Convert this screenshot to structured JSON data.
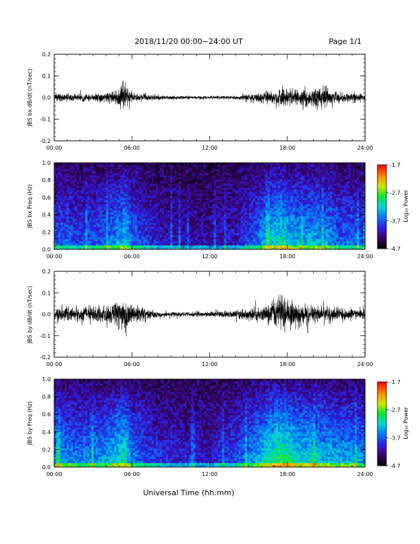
{
  "header": {
    "title": "2018/11/20  00:00−24:00 UT",
    "page": "Page 1/1"
  },
  "xlabel": "Universal Time (hh:mm)",
  "colorbar": {
    "label": "Log₁₀ Power",
    "ticks": [
      "-1.7",
      "-2.7",
      "-3.7",
      "-4.7"
    ]
  },
  "chart_data": [
    {
      "type": "line",
      "id": "bx-waveform",
      "ylabel": "JBS bx dB/dt (nT/sec)",
      "xlim": [
        0,
        24
      ],
      "ylim": [
        -0.2,
        0.2
      ],
      "xticks": [
        "00:00",
        "06:00",
        "12:00",
        "18:00",
        "24:00"
      ],
      "yticks": [
        "0.2",
        "0.1",
        "0.0",
        "-0.1",
        "-0.2"
      ],
      "envelope": {
        "x_hours": [
          0,
          2,
          4,
          5,
          5.3,
          5.6,
          6,
          8,
          10,
          12,
          14,
          16,
          17,
          18,
          19,
          20,
          20.5,
          21,
          22,
          23,
          24
        ],
        "amplitude": [
          0.02,
          0.02,
          0.025,
          0.04,
          0.09,
          0.05,
          0.025,
          0.012,
          0.008,
          0.008,
          0.01,
          0.025,
          0.04,
          0.05,
          0.045,
          0.05,
          0.06,
          0.05,
          0.03,
          0.025,
          0.02
        ]
      }
    },
    {
      "type": "heatmap",
      "id": "bx-spectrogram",
      "ylabel": "JBS bx Freq (Hz)",
      "xlim": [
        0,
        24
      ],
      "ylim": [
        0.0,
        1.0
      ],
      "zlim": [
        -4.7,
        -1.7
      ],
      "xticks": [
        "00:00",
        "06:00",
        "12:00",
        "18:00",
        "24:00"
      ],
      "yticks": [
        "1.0",
        "0.8",
        "0.6",
        "0.4",
        "0.2",
        "0.0"
      ],
      "activity": {
        "x_hours": [
          0,
          2,
          4,
          5,
          5.5,
          6,
          8,
          10,
          12,
          14,
          15.5,
          16.5,
          17.5,
          18,
          19,
          20,
          21,
          22,
          23,
          24
        ],
        "level": [
          0.35,
          0.3,
          0.35,
          0.45,
          0.55,
          0.35,
          0.2,
          0.15,
          0.15,
          0.2,
          0.35,
          0.5,
          0.6,
          0.55,
          0.45,
          0.5,
          0.45,
          0.35,
          0.35,
          0.3
        ]
      }
    },
    {
      "type": "line",
      "id": "by-waveform",
      "ylabel": "JBS by dB/dt (nT/sec)",
      "xlim": [
        0,
        24
      ],
      "ylim": [
        -0.2,
        0.2
      ],
      "xticks": [
        "00:00",
        "06:00",
        "12:00",
        "18:00",
        "24:00"
      ],
      "yticks": [
        "0.2",
        "0.1",
        "0.0",
        "-0.1",
        "-0.2"
      ],
      "envelope": {
        "x_hours": [
          0,
          2,
          4,
          5,
          5.5,
          6,
          8,
          10,
          11,
          12,
          14,
          16,
          17,
          17.5,
          18,
          19,
          20,
          22,
          23,
          24
        ],
        "amplitude": [
          0.04,
          0.035,
          0.05,
          0.07,
          0.1,
          0.05,
          0.015,
          0.012,
          0.015,
          0.015,
          0.02,
          0.04,
          0.07,
          0.1,
          0.08,
          0.06,
          0.045,
          0.035,
          0.03,
          0.03
        ]
      }
    },
    {
      "type": "heatmap",
      "id": "by-spectrogram",
      "ylabel": "JBS by Freq (Hz)",
      "xlim": [
        0,
        24
      ],
      "ylim": [
        0.0,
        1.0
      ],
      "zlim": [
        -4.7,
        -1.7
      ],
      "xticks": [
        "00:00",
        "06:00",
        "12:00",
        "18:00",
        "24:00"
      ],
      "yticks": [
        "1.0",
        "0.8",
        "0.6",
        "0.4",
        "0.2",
        "0.0"
      ],
      "activity": {
        "x_hours": [
          0,
          2,
          4,
          5,
          5.5,
          6,
          8,
          10,
          12,
          14,
          15.5,
          16.5,
          17.5,
          18,
          19,
          20,
          21,
          22,
          23,
          24
        ],
        "level": [
          0.45,
          0.4,
          0.45,
          0.55,
          0.6,
          0.4,
          0.25,
          0.2,
          0.2,
          0.3,
          0.45,
          0.6,
          0.7,
          0.65,
          0.55,
          0.55,
          0.5,
          0.45,
          0.45,
          0.4
        ]
      }
    }
  ]
}
